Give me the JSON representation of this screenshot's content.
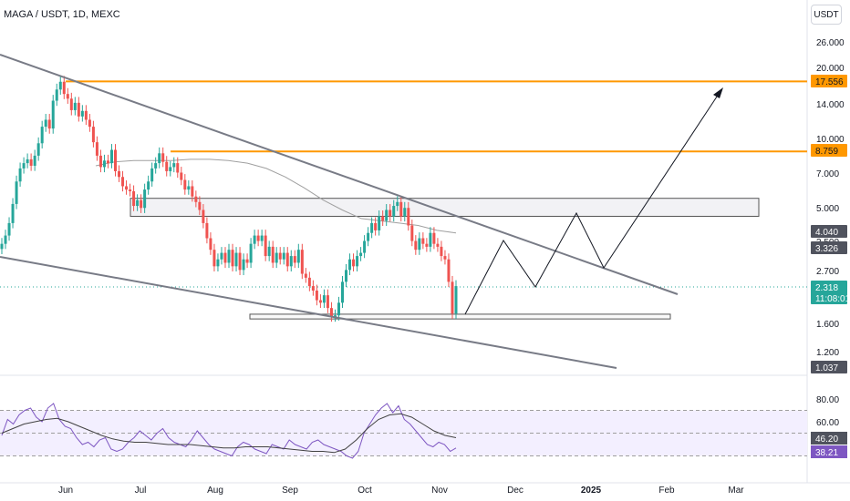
{
  "header": {
    "symbol_title": "MAGA / USDT, 1D, MEXC",
    "currency_button": "USDT"
  },
  "colors": {
    "up": "#26a69a",
    "down": "#ef5350",
    "orange": "#ff9800",
    "trendline": "#787b86",
    "rsi": "#7e57c2",
    "rsi_band": "#f3efff",
    "ma": "#a0a0a0"
  },
  "chart_data": {
    "type": "candlestick",
    "scale": "log",
    "price_axis_ticks": [
      "26.000",
      "20.000",
      "14.000",
      "10.000",
      "7.000",
      "5.000",
      "3.500",
      "2.700",
      "1.600",
      "1.200"
    ],
    "time_axis_labels": [
      "Jun",
      "Jul",
      "Aug",
      "Sep",
      "Oct",
      "Nov",
      "Dec",
      "2025",
      "Feb",
      "Mar"
    ],
    "price_badges": [
      {
        "label": "17.556",
        "kind": "orange-level"
      },
      {
        "label": "8.759",
        "kind": "orange-level"
      },
      {
        "label": "4.040",
        "kind": "gray"
      },
      {
        "label": "3.326",
        "kind": "gray"
      },
      {
        "label": "2.318",
        "kind": "current"
      },
      {
        "label": "11:08:01",
        "kind": "countdown"
      },
      {
        "label": "1.037",
        "kind": "gray"
      }
    ],
    "horizontal_levels": [
      17.556,
      8.759
    ],
    "resistance_zone": {
      "low": 4.6,
      "high": 5.5
    },
    "support_zone": {
      "low": 1.66,
      "high": 1.74
    },
    "candle_closes": [
      3.5,
      3.8,
      4.3,
      5.2,
      6.5,
      7.4,
      7.8,
      8.1,
      7.6,
      8.4,
      9.5,
      11.2,
      12.0,
      11.0,
      14.5,
      16.2,
      17.5,
      15.5,
      14.8,
      13.2,
      14.2,
      12.4,
      13.1,
      12.0,
      11.2,
      9.6,
      8.4,
      7.5,
      8.0,
      7.8,
      8.9,
      7.2,
      6.8,
      6.2,
      6.0,
      5.9,
      5.1,
      5.4,
      5.0,
      6.0,
      6.5,
      7.4,
      7.8,
      8.6,
      7.9,
      7.2,
      7.5,
      7.8,
      7.1,
      6.6,
      6.0,
      6.2,
      5.6,
      5.3,
      4.9,
      4.3,
      3.7,
      3.3,
      2.8,
      3.0,
      3.2,
      2.9,
      3.3,
      2.8,
      3.2,
      2.7,
      3.0,
      2.9,
      3.5,
      3.8,
      3.6,
      3.8,
      3.1,
      3.4,
      2.9,
      3.2,
      3.0,
      3.2,
      2.8,
      3.1,
      2.9,
      3.3,
      2.6,
      2.5,
      2.3,
      2.2,
      2.0,
      1.95,
      2.1,
      1.85,
      1.7,
      1.72,
      1.95,
      2.4,
      2.7,
      3.0,
      2.8,
      3.1,
      3.2,
      3.6,
      3.9,
      4.3,
      4.0,
      4.6,
      4.4,
      4.9,
      4.6,
      5.1,
      5.3,
      4.6,
      5.0,
      4.2,
      3.6,
      3.3,
      3.7,
      3.5,
      3.4,
      3.9,
      3.5,
      3.4,
      3.1,
      3.0,
      2.4,
      1.75,
      2.3
    ],
    "moving_average": [
      7.6,
      7.9,
      8.0,
      8.0,
      8.0,
      8.1,
      8.1,
      8.0,
      7.8,
      7.4,
      6.8,
      6.1,
      5.4,
      4.9,
      4.5,
      4.4,
      4.3,
      4.2,
      4.0,
      3.9
    ],
    "trendlines": [
      {
        "name": "upper-wedge",
        "from": [
          "start",
          26.0
        ],
        "to": [
          "mid Jan",
          2.05
        ]
      },
      {
        "name": "lower-wedge",
        "from": [
          "start",
          3.0
        ],
        "to": [
          "mid Jan",
          1.05
        ]
      }
    ],
    "projection_path_prices": [
      1.75,
      3.6,
      2.3,
      5.0,
      2.7,
      16.5
    ],
    "rsi": {
      "ticks": [
        "80.00",
        "60.00"
      ],
      "badges": [
        "46.20",
        "38.21"
      ],
      "levels": [
        70,
        50,
        30
      ],
      "values": [
        48,
        62,
        58,
        66,
        70,
        72,
        64,
        60,
        72,
        76,
        62,
        56,
        54,
        46,
        40,
        42,
        38,
        44,
        46,
        36,
        34,
        36,
        42,
        46,
        52,
        48,
        44,
        50,
        54,
        46,
        42,
        40,
        38,
        44,
        52,
        46,
        40,
        36,
        34,
        32,
        30,
        38,
        42,
        40,
        36,
        34,
        32,
        40,
        38,
        36,
        44,
        40,
        38,
        36,
        42,
        44,
        40,
        38,
        36,
        34,
        30,
        28,
        34,
        50,
        58,
        66,
        72,
        76,
        68,
        74,
        62,
        58,
        52,
        46,
        40,
        38,
        42,
        40,
        34,
        37
      ],
      "ma_values": [
        50,
        54,
        58,
        60,
        62,
        63,
        60,
        56,
        52,
        48,
        45,
        43,
        42,
        42,
        41,
        40,
        40,
        40,
        39,
        38,
        37,
        37,
        38,
        38,
        38,
        37,
        36,
        35,
        34,
        34,
        33,
        36,
        44,
        54,
        62,
        66,
        67,
        64,
        58,
        52,
        48,
        46
      ]
    }
  }
}
